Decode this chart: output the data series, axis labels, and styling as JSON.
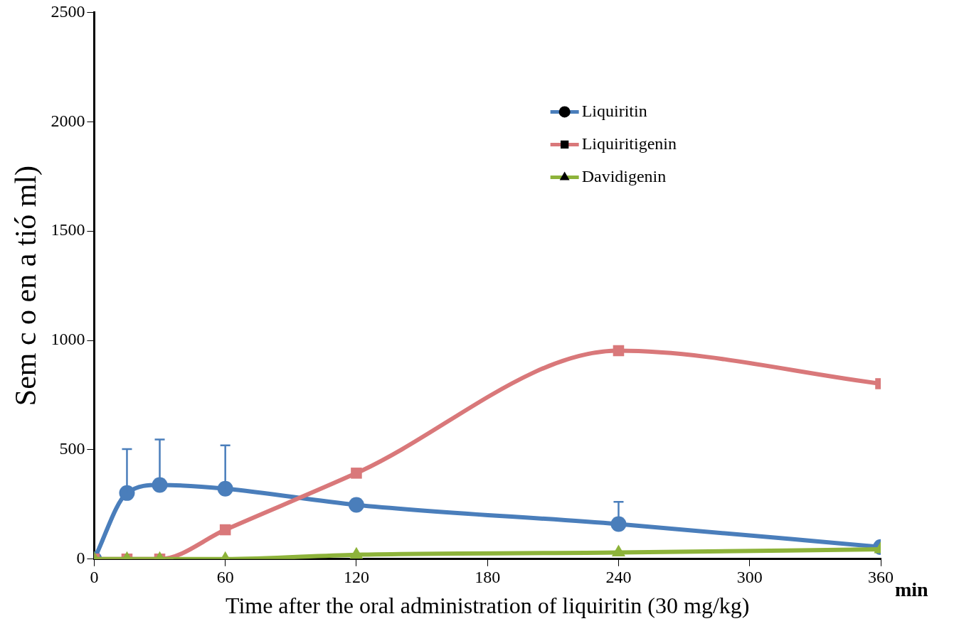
{
  "chart_data": {
    "type": "line",
    "xlabel": "Time after the oral administration of liquiritin (30 mg/kg)",
    "ylabel": "Sem c o en a tió ml)",
    "x": [
      0,
      15,
      30,
      60,
      120,
      240,
      360
    ],
    "series": [
      {
        "name": "Liquiritin",
        "color": "#4a7ebb",
        "marker": "circle",
        "values": [
          0,
          302,
          339,
          322,
          248,
          160,
          55
        ],
        "errors": [
          null,
          [
            302,
            503
          ],
          [
            339,
            547
          ],
          [
            322,
            520
          ],
          null,
          [
            160,
            262
          ],
          null
        ]
      },
      {
        "name": "Liquiritigenin",
        "color": "#d9787a",
        "marker": "square",
        "values": [
          0,
          0,
          0,
          134,
          393,
          953,
          802
        ]
      },
      {
        "name": "Davidigenin",
        "color": "#8db33a",
        "marker": "triangle",
        "values": [
          0,
          0,
          0,
          0,
          20,
          30,
          45
        ]
      }
    ],
    "xlim": [
      0,
      360
    ],
    "xticks": [
      0,
      60,
      120,
      180,
      240,
      300,
      360
    ],
    "ylim": [
      0,
      2500
    ],
    "yticks": [
      0,
      500,
      1000,
      1500,
      2000,
      2500
    ],
    "grid": false,
    "legend": "top right",
    "annotations": [
      "min"
    ]
  }
}
